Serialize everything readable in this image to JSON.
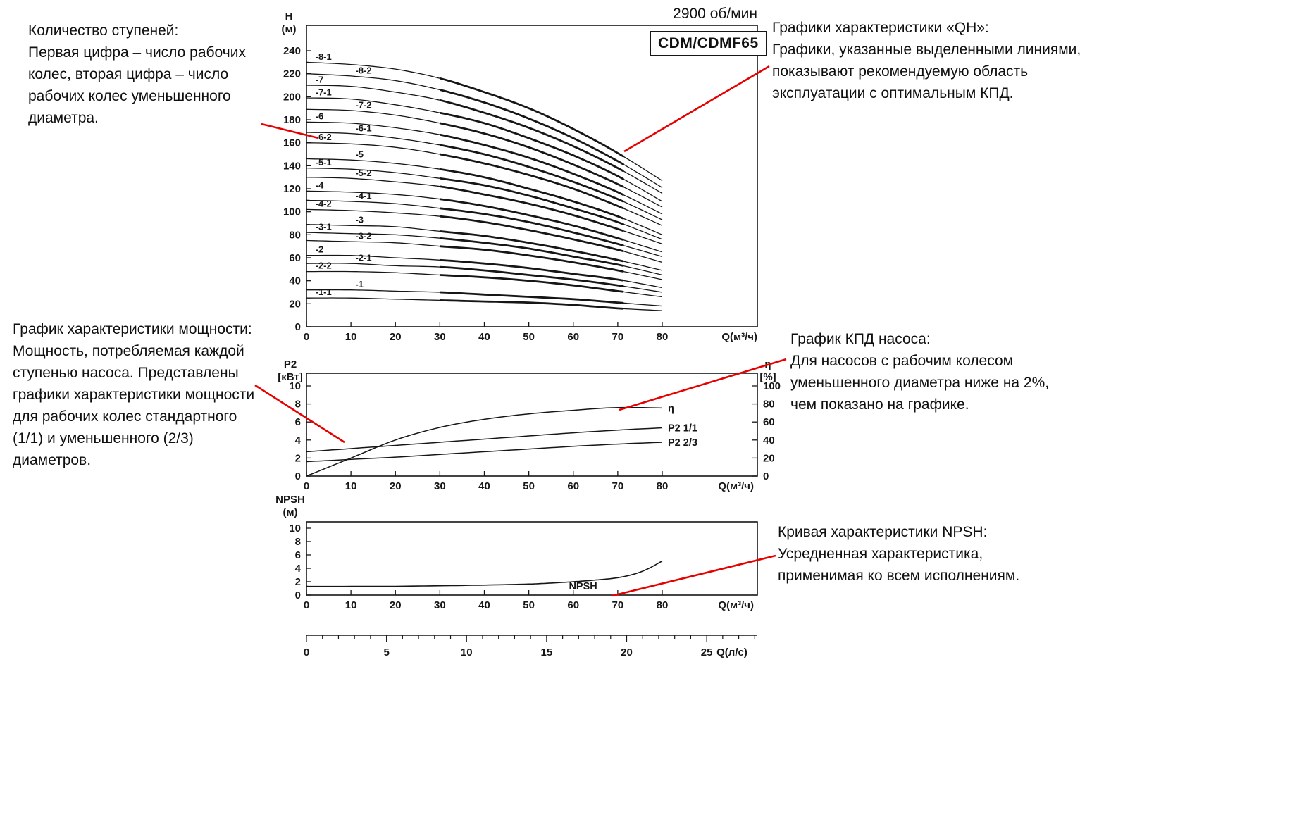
{
  "page": {
    "background": "#ffffff",
    "ink": "#161616",
    "callout_color": "#e60000"
  },
  "header": {
    "rpm": "2900 об/мин",
    "model": "CDM/CDMF65"
  },
  "callouts": [
    {
      "id": "stages",
      "title": "Количество ступеней:",
      "body": "Первая цифра – число рабочих колес, вторая цифра – число рабочих колес уменьшенного диаметра.",
      "line": [
        371,
        176,
        452,
        196
      ]
    },
    {
      "id": "qh",
      "title": "Графики характеристики «QH»:",
      "body": "Графики, указанные выделенными линиями, показывают рекомендуемую область эксплуатации с оптимальным КПД.",
      "line": [
        1092,
        94,
        886,
        215
      ]
    },
    {
      "id": "power",
      "title": "График характеристики мощности:",
      "body": "Мощность, потребляемая каждой ступенью насоса. Представлены графики характеристики мощности для рабочих колес стандартного (1/1) и уменьшенного (2/3) диаметров.",
      "line": [
        362,
        547,
        489,
        628
      ]
    },
    {
      "id": "eta",
      "title": "График КПД насоса:",
      "body": "Для насосов с рабочим колесом уменьшенного диаметра ниже на 2%, чем показано на графике.",
      "line": [
        1116,
        510,
        879,
        582
      ]
    },
    {
      "id": "npsh",
      "title": "Кривая характеристики NPSH:",
      "body": "Усредненная характеристика, применимая ко всем исполнениям.",
      "line": [
        1101,
        789,
        869,
        846
      ]
    }
  ],
  "chart_data": [
    {
      "id": "qh",
      "type": "line",
      "title": "CDM/CDMF65 QH curves, 2900 об/мин",
      "xlabel": "Q(м³/ч)",
      "ylabel": [
        "H",
        "(м)"
      ],
      "xlim": [
        0,
        101
      ],
      "ylim": [
        0,
        262
      ],
      "xticks": [
        0,
        10,
        20,
        30,
        40,
        50,
        60,
        70,
        80
      ],
      "yticks": [
        0,
        20,
        40,
        60,
        80,
        100,
        120,
        140,
        160,
        180,
        200,
        220,
        240
      ],
      "bold_range": [
        30,
        72
      ],
      "q": [
        0,
        10,
        20,
        30,
        40,
        50,
        60,
        70,
        80
      ],
      "series": [
        {
          "name": "-8-1",
          "label_q": 2,
          "h": [
            230,
            228,
            224,
            216,
            204,
            190,
            172,
            151,
            127
          ]
        },
        {
          "name": "-8-2",
          "label_q": 11,
          "h": [
            220,
            218,
            214,
            206,
            195,
            181,
            164,
            144,
            121
          ]
        },
        {
          "name": "-7",
          "label_q": 2,
          "h": [
            210,
            209,
            204,
            197,
            186,
            173,
            157,
            138,
            116
          ]
        },
        {
          "name": "-7-1",
          "label_q": 2,
          "h": [
            199,
            198,
            193,
            186,
            177,
            164,
            149,
            131,
            109
          ]
        },
        {
          "name": "-7-2",
          "label_q": 11,
          "h": [
            189,
            188,
            184,
            177,
            168,
            156,
            141,
            124,
            104
          ]
        },
        {
          "name": "-6",
          "label_q": 2,
          "h": [
            178,
            177,
            173,
            167,
            158,
            147,
            133,
            117,
            98
          ]
        },
        {
          "name": "-6-1",
          "label_q": 11,
          "h": [
            169,
            168,
            164,
            158,
            150,
            139,
            126,
            111,
            93
          ]
        },
        {
          "name": "-6-2",
          "label_q": 2,
          "h": [
            160,
            159,
            156,
            150,
            142,
            132,
            120,
            105,
            88
          ]
        },
        {
          "name": "-5",
          "label_q": 11,
          "h": [
            146,
            145,
            142,
            137,
            130,
            120,
            109,
            96,
            80
          ]
        },
        {
          "name": "-5-1",
          "label_q": 2,
          "h": [
            138,
            137,
            134,
            129,
            123,
            114,
            103,
            91,
            76
          ]
        },
        {
          "name": "-5-2",
          "label_q": 11,
          "h": [
            130,
            129,
            126,
            122,
            115,
            107,
            97,
            85,
            72
          ]
        },
        {
          "name": "-4",
          "label_q": 2,
          "h": [
            118,
            117,
            115,
            111,
            105,
            97,
            88,
            77,
            65
          ]
        },
        {
          "name": "-4-1",
          "label_q": 11,
          "h": [
            110,
            109,
            107,
            103,
            98,
            91,
            82,
            72,
            61
          ]
        },
        {
          "name": "-4-2",
          "label_q": 2,
          "h": [
            102,
            101,
            99,
            96,
            91,
            84,
            76,
            67,
            56
          ]
        },
        {
          "name": "-3",
          "label_q": 11,
          "h": [
            89,
            88,
            87,
            83,
            79,
            73,
            66,
            58,
            49
          ]
        },
        {
          "name": "-3-1",
          "label_q": 2,
          "h": [
            82,
            81,
            80,
            77,
            73,
            68,
            61,
            54,
            45
          ]
        },
        {
          "name": "-3-2",
          "label_q": 11,
          "h": [
            75,
            74,
            73,
            70,
            67,
            62,
            56,
            49,
            41
          ]
        },
        {
          "name": "-2",
          "label_q": 2,
          "h": [
            62,
            62,
            60,
            58,
            55,
            51,
            46,
            41,
            34
          ]
        },
        {
          "name": "-2-1",
          "label_q": 11,
          "h": [
            55,
            55,
            53,
            52,
            49,
            45,
            41,
            36,
            30
          ]
        },
        {
          "name": "-2-2",
          "label_q": 2,
          "h": [
            48,
            48,
            47,
            45,
            43,
            40,
            36,
            31,
            26
          ]
        },
        {
          "name": "-1",
          "label_q": 11,
          "h": [
            32,
            32,
            31,
            30,
            28,
            26,
            24,
            21,
            18
          ]
        },
        {
          "name": "-1-1",
          "label_q": 2,
          "h": [
            25,
            25,
            24,
            23,
            22,
            21,
            19,
            16,
            14
          ]
        }
      ]
    },
    {
      "id": "power",
      "type": "line",
      "xlabel": "Q(м³/ч)",
      "ylabel_left": [
        "P2",
        "[кВт]"
      ],
      "ylabel_right": [
        "η",
        "[%]"
      ],
      "xlim": [
        0,
        101
      ],
      "ylim_left": [
        0,
        11.4
      ],
      "ylim_right": [
        0,
        114
      ],
      "xticks": [
        0,
        10,
        20,
        30,
        40,
        50,
        60,
        70,
        80
      ],
      "yticks_left": [
        0,
        2,
        4,
        6,
        8,
        10
      ],
      "yticks_right": [
        0,
        20,
        40,
        60,
        80,
        100
      ],
      "series": [
        {
          "name": "η",
          "axis": "right",
          "q": [
            0,
            10,
            20,
            30,
            40,
            50,
            60,
            70,
            80
          ],
          "v": [
            0,
            20,
            40,
            54,
            63,
            69,
            73,
            76,
            75.5
          ]
        },
        {
          "name": "P2 1/1",
          "axis": "left",
          "q": [
            0,
            10,
            20,
            30,
            40,
            50,
            60,
            70,
            80
          ],
          "v": [
            2.7,
            3.05,
            3.4,
            3.75,
            4.1,
            4.45,
            4.8,
            5.1,
            5.35
          ]
        },
        {
          "name": "P2 2/3",
          "axis": "left",
          "q": [
            0,
            10,
            20,
            30,
            40,
            50,
            60,
            70,
            80
          ],
          "v": [
            1.6,
            1.85,
            2.1,
            2.4,
            2.7,
            3.0,
            3.3,
            3.55,
            3.75
          ]
        }
      ]
    },
    {
      "id": "npsh",
      "type": "line",
      "xlabel": "Q(м³/ч)",
      "ylabel": [
        "NPSH",
        "(м)"
      ],
      "xlim": [
        0,
        101
      ],
      "ylim": [
        0,
        10.9
      ],
      "xticks": [
        0,
        10,
        20,
        30,
        40,
        50,
        60,
        70,
        80
      ],
      "yticks": [
        0,
        2,
        4,
        6,
        8,
        10
      ],
      "series": [
        {
          "name": "NPSH",
          "label_q": 59,
          "label_v": 0.85,
          "q": [
            0,
            10,
            20,
            30,
            40,
            50,
            55,
            60,
            65,
            70,
            74,
            77,
            80
          ],
          "v": [
            1.3,
            1.3,
            1.32,
            1.4,
            1.5,
            1.65,
            1.8,
            2.0,
            2.25,
            2.6,
            3.2,
            4.0,
            5.1
          ]
        }
      ]
    }
  ],
  "flow_scale": {
    "label": "Q(л/с)",
    "ticks": [
      0,
      5,
      10,
      15,
      20,
      25
    ]
  }
}
